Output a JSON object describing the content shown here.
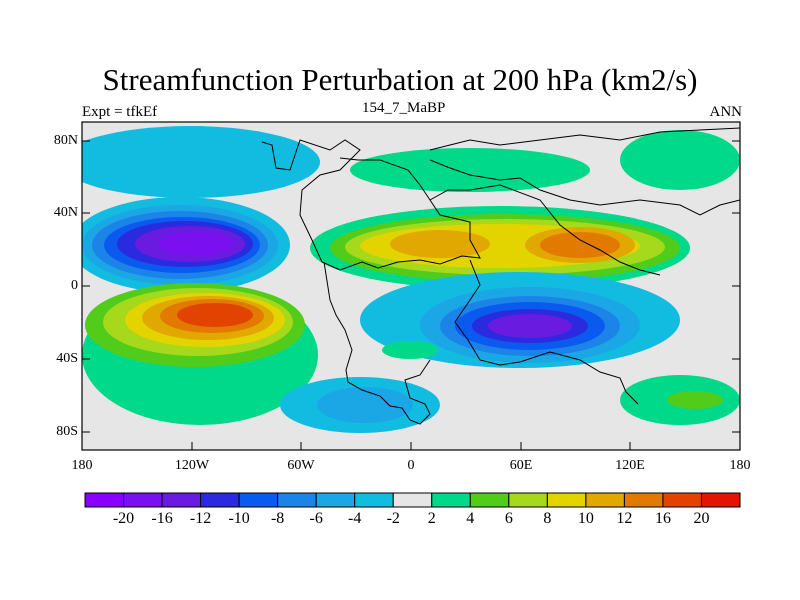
{
  "header": {
    "title": "Streamfunction Perturbation at 200 hPa (km2/s)",
    "subtitle_left": "Expt = tfkEf",
    "subtitle_center": "154_7_MaBP",
    "subtitle_right": "ANN"
  },
  "axes": {
    "y_ticks": [
      "80N",
      "40N",
      "0",
      "40S",
      "80S"
    ],
    "x_ticks": [
      "180",
      "120W",
      "60W",
      "0",
      "60E",
      "120E",
      "180"
    ]
  },
  "colorbar": {
    "colors": [
      "#8a00ff",
      "#7a10ef",
      "#6a1be0",
      "#2a2adf",
      "#0a5af0",
      "#1c84e8",
      "#1ba6e6",
      "#12bce0",
      "#e6e6e6",
      "#00d98a",
      "#52cc1a",
      "#a6d81c",
      "#e3d400",
      "#e0a800",
      "#e27a00",
      "#e24400",
      "#e21600"
    ],
    "labels": [
      "-20",
      "-16",
      "-12",
      "-10",
      "-8",
      "-6",
      "-4",
      "-2",
      "2",
      "4",
      "6",
      "8",
      "10",
      "12",
      "16",
      "20"
    ]
  },
  "legend": {
    "colors": {
      "land_outline": "#000000",
      "background": "#e6e6e6"
    }
  }
}
